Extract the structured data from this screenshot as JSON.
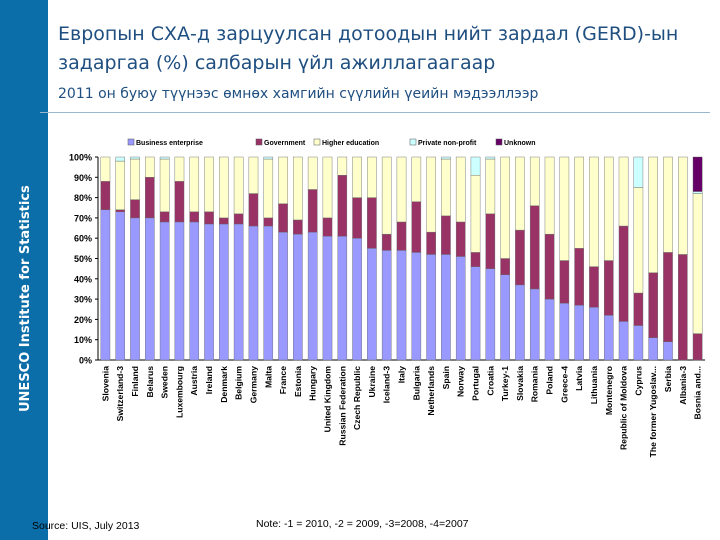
{
  "sidebar": {
    "text": "UNESCO Institute for Statistics"
  },
  "header": {
    "title_line1": "Европын СХА-д зарцуулсан дотоодын нийт зардал (GERD)-ын",
    "title_line2": "задаргаа (%) салбарын үйл ажиллагаагаар",
    "subtitle": "2011 он буюу түүнээс өмнөх хамгийн сүүлийн үеийн мэдээллээр"
  },
  "footer": {
    "source": "Source: UIS, July 2013",
    "note": "Note: -1 = 2010, -2 = 2009, -3=2008, -4=2007"
  },
  "colors": {
    "business": "#9999ff",
    "government": "#993366",
    "higher": "#ffffcc",
    "private": "#ccffff",
    "unknown": "#660066"
  },
  "chart_data": {
    "type": "bar",
    "stacked": true,
    "ylim": [
      0,
      100
    ],
    "yticks": [
      "0%",
      "10%",
      "20%",
      "30%",
      "40%",
      "50%",
      "60%",
      "70%",
      "80%",
      "90%",
      "100%"
    ],
    "legend_position": "top",
    "categories": [
      "Slovenia",
      "Switzerland-3",
      "Finland",
      "Belarus",
      "Sweden",
      "Luxembourg",
      "Austria",
      "Ireland",
      "Denmark",
      "Belgium",
      "Germany",
      "Malta",
      "France",
      "Estonia",
      "Hungary",
      "United Kingdom",
      "Russian Federation",
      "Czech Republic",
      "Ukraine",
      "Iceland-3",
      "Italy",
      "Bulgaria",
      "Netherlands",
      "Spain",
      "Norway",
      "Portugal",
      "Croatia",
      "Turkey-1",
      "Slovakia",
      "Romania",
      "Poland",
      "Greece-4",
      "Latvia",
      "Lithuania",
      "Montenegro",
      "Republic of Moldova",
      "Cyprus",
      "The former Yugoslav...",
      "Serbia",
      "Albania-3",
      "Bosnia and..."
    ],
    "series": [
      {
        "name": "Business enterprise",
        "color": "#9999ff",
        "values": [
          74,
          73,
          70,
          70,
          68,
          68,
          68,
          67,
          67,
          67,
          66,
          66,
          63,
          62,
          63,
          61,
          61,
          60,
          55,
          54,
          54,
          53,
          52,
          52,
          51,
          46,
          45,
          42,
          37,
          35,
          30,
          28,
          27,
          26,
          22,
          19,
          17,
          11,
          9,
          0,
          0
        ]
      },
      {
        "name": "Government",
        "color": "#993366",
        "values": [
          14,
          1,
          9,
          20,
          5,
          20,
          5,
          6,
          3,
          5,
          16,
          4,
          14,
          7,
          21,
          9,
          30,
          20,
          25,
          8,
          14,
          25,
          11,
          19,
          17,
          7,
          27,
          8,
          27,
          41,
          32,
          21,
          28,
          20,
          27,
          47,
          16,
          32,
          44,
          52,
          13
        ]
      },
      {
        "name": "Higher education",
        "color": "#ffffcc",
        "values": [
          12,
          24,
          20,
          10,
          26,
          12,
          27,
          27,
          30,
          28,
          18,
          29,
          23,
          31,
          16,
          30,
          9,
          20,
          20,
          38,
          32,
          22,
          37,
          28,
          32,
          38,
          27,
          50,
          36,
          24,
          38,
          51,
          45,
          54,
          51,
          34,
          52,
          57,
          47,
          48,
          69
        ]
      },
      {
        "name": "Private non-profit",
        "color": "#ccffff",
        "values": [
          0,
          2,
          1,
          0,
          1,
          0,
          0,
          0,
          0,
          0,
          0,
          1,
          0,
          0,
          0,
          0,
          0,
          0,
          0,
          0,
          0,
          0,
          0,
          1,
          0,
          9,
          1,
          0,
          0,
          0,
          0,
          0,
          0,
          0,
          0,
          0,
          15,
          0,
          0,
          0,
          1
        ]
      },
      {
        "name": "Unknown",
        "color": "#660066",
        "values": [
          0,
          0,
          0,
          0,
          0,
          0,
          0,
          0,
          0,
          0,
          0,
          0,
          0,
          0,
          0,
          0,
          0,
          0,
          0,
          0,
          0,
          0,
          0,
          0,
          0,
          0,
          0,
          0,
          0,
          0,
          0,
          0,
          0,
          0,
          0,
          0,
          0,
          0,
          0,
          0,
          17
        ]
      }
    ]
  }
}
